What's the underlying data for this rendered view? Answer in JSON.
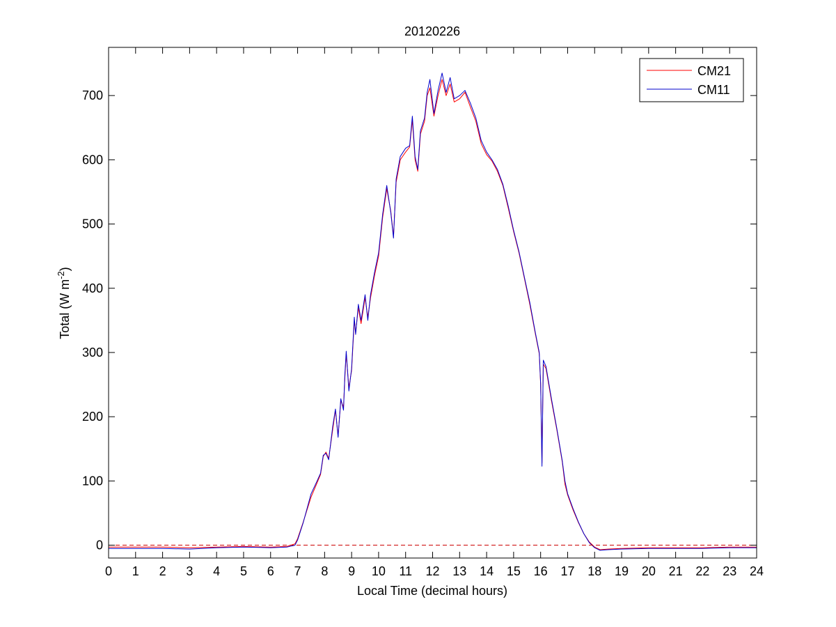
{
  "chart_data": {
    "type": "line",
    "title": "20120226",
    "xlabel": "Local Time (decimal hours)",
    "ylabel_main": "Total (W m",
    "ylabel_sup": "-2",
    "ylabel_close": ")",
    "xlim": [
      0,
      24
    ],
    "ylim": [
      -20,
      775
    ],
    "xticks": [
      0,
      1,
      2,
      3,
      4,
      5,
      6,
      7,
      8,
      9,
      10,
      11,
      12,
      13,
      14,
      15,
      16,
      17,
      18,
      19,
      20,
      21,
      22,
      23,
      24
    ],
    "yticks": [
      0,
      100,
      200,
      300,
      400,
      500,
      600,
      700
    ],
    "grid": false,
    "legend_position": "top-right",
    "reference_line": {
      "y": 0,
      "style": "dashed",
      "color": "#cc0000"
    },
    "series": [
      {
        "name": "CM21",
        "color": "#ff0000",
        "points": [
          [
            0,
            -3
          ],
          [
            1,
            -3
          ],
          [
            2,
            -3
          ],
          [
            3,
            -4
          ],
          [
            4,
            -3
          ],
          [
            5,
            -2
          ],
          [
            6,
            -3
          ],
          [
            6.6,
            -2
          ],
          [
            6.9,
            2
          ],
          [
            7.0,
            10
          ],
          [
            7.2,
            35
          ],
          [
            7.5,
            75
          ],
          [
            7.7,
            95
          ],
          [
            7.85,
            110
          ],
          [
            7.95,
            138
          ],
          [
            8.05,
            145
          ],
          [
            8.15,
            135
          ],
          [
            8.3,
            180
          ],
          [
            8.4,
            210
          ],
          [
            8.5,
            170
          ],
          [
            8.6,
            225
          ],
          [
            8.7,
            215
          ],
          [
            8.75,
            260
          ],
          [
            8.8,
            298
          ],
          [
            8.9,
            245
          ],
          [
            9.0,
            272
          ],
          [
            9.1,
            350
          ],
          [
            9.15,
            330
          ],
          [
            9.25,
            370
          ],
          [
            9.35,
            345
          ],
          [
            9.5,
            385
          ],
          [
            9.6,
            355
          ],
          [
            9.7,
            385
          ],
          [
            9.85,
            420
          ],
          [
            10.0,
            450
          ],
          [
            10.15,
            510
          ],
          [
            10.3,
            555
          ],
          [
            10.45,
            520
          ],
          [
            10.55,
            480
          ],
          [
            10.65,
            565
          ],
          [
            10.8,
            600
          ],
          [
            11.0,
            612
          ],
          [
            11.15,
            620
          ],
          [
            11.25,
            662
          ],
          [
            11.35,
            600
          ],
          [
            11.45,
            582
          ],
          [
            11.55,
            640
          ],
          [
            11.7,
            660
          ],
          [
            11.8,
            700
          ],
          [
            11.9,
            712
          ],
          [
            12.05,
            668
          ],
          [
            12.2,
            700
          ],
          [
            12.35,
            725
          ],
          [
            12.5,
            700
          ],
          [
            12.65,
            718
          ],
          [
            12.8,
            690
          ],
          [
            13.0,
            695
          ],
          [
            13.2,
            705
          ],
          [
            13.4,
            682
          ],
          [
            13.6,
            660
          ],
          [
            13.8,
            625
          ],
          [
            14.0,
            608
          ],
          [
            14.2,
            598
          ],
          [
            14.4,
            582
          ],
          [
            14.6,
            560
          ],
          [
            14.8,
            525
          ],
          [
            15.0,
            488
          ],
          [
            15.2,
            455
          ],
          [
            15.4,
            415
          ],
          [
            15.6,
            375
          ],
          [
            15.8,
            330
          ],
          [
            15.95,
            298
          ],
          [
            16.0,
            250
          ],
          [
            16.05,
            128
          ],
          [
            16.1,
            282
          ],
          [
            16.2,
            275
          ],
          [
            16.4,
            225
          ],
          [
            16.6,
            180
          ],
          [
            16.8,
            130
          ],
          [
            16.9,
            95
          ],
          [
            17.0,
            78
          ],
          [
            17.2,
            55
          ],
          [
            17.4,
            35
          ],
          [
            17.6,
            18
          ],
          [
            17.8,
            5
          ],
          [
            18.0,
            -3
          ],
          [
            18.2,
            -7
          ],
          [
            18.5,
            -6
          ],
          [
            19,
            -5
          ],
          [
            20,
            -4
          ],
          [
            21,
            -4
          ],
          [
            22,
            -4
          ],
          [
            23,
            -3
          ],
          [
            24,
            -3
          ]
        ]
      },
      {
        "name": "CM11",
        "color": "#0000cc",
        "points": [
          [
            0,
            -5
          ],
          [
            1,
            -5
          ],
          [
            2,
            -5
          ],
          [
            3,
            -6
          ],
          [
            4,
            -4
          ],
          [
            5,
            -3
          ],
          [
            6,
            -4
          ],
          [
            6.6,
            -3
          ],
          [
            6.9,
            0
          ],
          [
            7.0,
            8
          ],
          [
            7.2,
            34
          ],
          [
            7.5,
            80
          ],
          [
            7.7,
            98
          ],
          [
            7.85,
            112
          ],
          [
            7.95,
            140
          ],
          [
            8.05,
            143
          ],
          [
            8.15,
            133
          ],
          [
            8.3,
            185
          ],
          [
            8.4,
            212
          ],
          [
            8.5,
            168
          ],
          [
            8.6,
            228
          ],
          [
            8.7,
            210
          ],
          [
            8.75,
            265
          ],
          [
            8.8,
            302
          ],
          [
            8.9,
            240
          ],
          [
            9.0,
            275
          ],
          [
            9.1,
            355
          ],
          [
            9.15,
            328
          ],
          [
            9.25,
            375
          ],
          [
            9.35,
            350
          ],
          [
            9.5,
            390
          ],
          [
            9.6,
            350
          ],
          [
            9.7,
            390
          ],
          [
            9.85,
            425
          ],
          [
            10.0,
            455
          ],
          [
            10.15,
            515
          ],
          [
            10.3,
            560
          ],
          [
            10.45,
            518
          ],
          [
            10.55,
            478
          ],
          [
            10.65,
            570
          ],
          [
            10.8,
            605
          ],
          [
            11.0,
            618
          ],
          [
            11.15,
            622
          ],
          [
            11.25,
            668
          ],
          [
            11.35,
            605
          ],
          [
            11.45,
            585
          ],
          [
            11.55,
            645
          ],
          [
            11.7,
            665
          ],
          [
            11.8,
            705
          ],
          [
            11.9,
            725
          ],
          [
            12.05,
            672
          ],
          [
            12.2,
            708
          ],
          [
            12.35,
            735
          ],
          [
            12.5,
            705
          ],
          [
            12.65,
            728
          ],
          [
            12.8,
            695
          ],
          [
            13.0,
            700
          ],
          [
            13.2,
            708
          ],
          [
            13.4,
            688
          ],
          [
            13.6,
            665
          ],
          [
            13.8,
            630
          ],
          [
            14.0,
            612
          ],
          [
            14.2,
            600
          ],
          [
            14.4,
            585
          ],
          [
            14.6,
            562
          ],
          [
            14.8,
            528
          ],
          [
            15.0,
            490
          ],
          [
            15.2,
            457
          ],
          [
            15.4,
            417
          ],
          [
            15.6,
            378
          ],
          [
            15.8,
            332
          ],
          [
            15.95,
            300
          ],
          [
            16.0,
            252
          ],
          [
            16.05,
            123
          ],
          [
            16.1,
            288
          ],
          [
            16.2,
            278
          ],
          [
            16.4,
            228
          ],
          [
            16.6,
            182
          ],
          [
            16.8,
            132
          ],
          [
            16.9,
            100
          ],
          [
            17.0,
            80
          ],
          [
            17.2,
            57
          ],
          [
            17.4,
            36
          ],
          [
            17.6,
            18
          ],
          [
            17.8,
            4
          ],
          [
            18.0,
            -4
          ],
          [
            18.2,
            -8
          ],
          [
            18.5,
            -7
          ],
          [
            19,
            -6
          ],
          [
            20,
            -5
          ],
          [
            21,
            -5
          ],
          [
            22,
            -5
          ],
          [
            23,
            -4
          ],
          [
            24,
            -4
          ]
        ]
      }
    ]
  }
}
